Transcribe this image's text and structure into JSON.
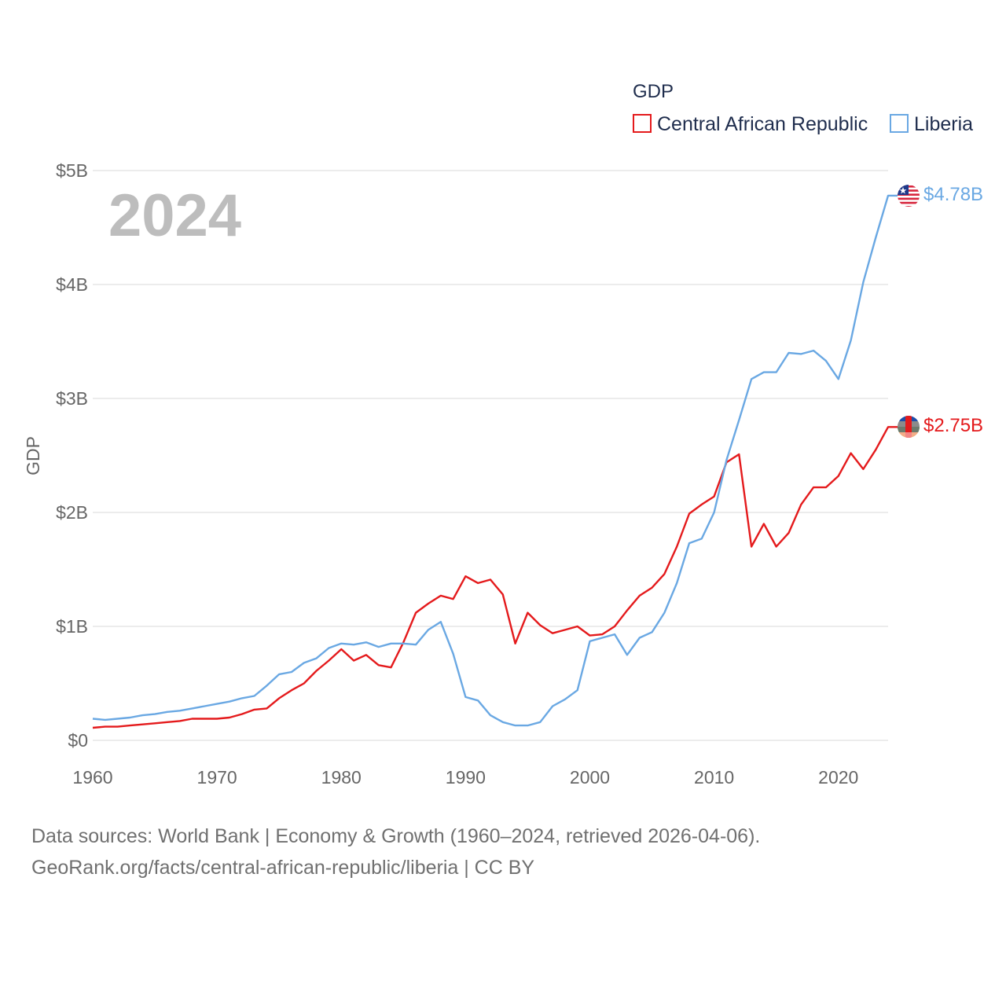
{
  "chart_data": {
    "type": "line",
    "title": "GDP",
    "year_label": "2024",
    "ylabel": "GDP",
    "xlabel": "",
    "xlim": [
      1960,
      2024
    ],
    "ylim": [
      0,
      5
    ],
    "y_unit": "billion USD",
    "grid": true,
    "legend_position": "top-right",
    "x_ticks": [
      1960,
      1970,
      1980,
      1990,
      2000,
      2010,
      2020
    ],
    "x_tick_labels": [
      "1960",
      "1970",
      "1980",
      "1990",
      "2000",
      "2010",
      "2020"
    ],
    "y_ticks": [
      0,
      1,
      2,
      3,
      4,
      5
    ],
    "y_tick_labels": [
      "$0",
      "$1B",
      "$2B",
      "$3B",
      "$4B",
      "$5B"
    ],
    "x": [
      1960,
      1961,
      1962,
      1963,
      1964,
      1965,
      1966,
      1967,
      1968,
      1969,
      1970,
      1971,
      1972,
      1973,
      1974,
      1975,
      1976,
      1977,
      1978,
      1979,
      1980,
      1981,
      1982,
      1983,
      1984,
      1985,
      1986,
      1987,
      1988,
      1989,
      1990,
      1991,
      1992,
      1993,
      1994,
      1995,
      1996,
      1997,
      1998,
      1999,
      2000,
      2001,
      2002,
      2003,
      2004,
      2005,
      2006,
      2007,
      2008,
      2009,
      2010,
      2011,
      2012,
      2013,
      2014,
      2015,
      2016,
      2017,
      2018,
      2019,
      2020,
      2021,
      2022,
      2023,
      2024
    ],
    "series": [
      {
        "name": "Central African Republic",
        "color": "#e41a1c",
        "end_label": "$2.75B",
        "flag": "central-african-republic-flag",
        "values": [
          0.11,
          0.12,
          0.12,
          0.13,
          0.14,
          0.15,
          0.16,
          0.17,
          0.19,
          0.19,
          0.19,
          0.2,
          0.23,
          0.27,
          0.28,
          0.37,
          0.44,
          0.5,
          0.61,
          0.7,
          0.8,
          0.7,
          0.75,
          0.66,
          0.64,
          0.86,
          1.12,
          1.2,
          1.27,
          1.24,
          1.44,
          1.38,
          1.41,
          1.28,
          0.85,
          1.12,
          1.01,
          0.94,
          0.97,
          1.0,
          0.92,
          0.93,
          1.0,
          1.14,
          1.27,
          1.34,
          1.46,
          1.7,
          1.99,
          2.07,
          2.14,
          2.44,
          2.51,
          1.7,
          1.9,
          1.7,
          1.82,
          2.07,
          2.22,
          2.22,
          2.32,
          2.52,
          2.38,
          2.55,
          2.75
        ]
      },
      {
        "name": "Liberia",
        "color": "#6aa8e3",
        "end_label": "$4.78B",
        "flag": "liberia-flag",
        "values": [
          0.19,
          0.18,
          0.19,
          0.2,
          0.22,
          0.23,
          0.25,
          0.26,
          0.28,
          0.3,
          0.32,
          0.34,
          0.37,
          0.39,
          0.48,
          0.58,
          0.6,
          0.68,
          0.72,
          0.81,
          0.85,
          0.84,
          0.86,
          0.82,
          0.85,
          0.85,
          0.84,
          0.97,
          1.04,
          0.76,
          0.38,
          0.35,
          0.22,
          0.16,
          0.13,
          0.13,
          0.16,
          0.3,
          0.36,
          0.44,
          0.87,
          0.9,
          0.93,
          0.75,
          0.9,
          0.95,
          1.12,
          1.38,
          1.73,
          1.77,
          2.0,
          2.46,
          2.81,
          3.17,
          3.23,
          3.23,
          3.4,
          3.39,
          3.42,
          3.33,
          3.17,
          3.51,
          4.02,
          4.41,
          4.78
        ]
      }
    ]
  },
  "footer": {
    "line1": "Data sources: World Bank | Economy & Growth (1960–2024, retrieved 2026-04-06).",
    "line2": "GeoRank.org/facts/central-african-republic/liberia | CC BY"
  }
}
